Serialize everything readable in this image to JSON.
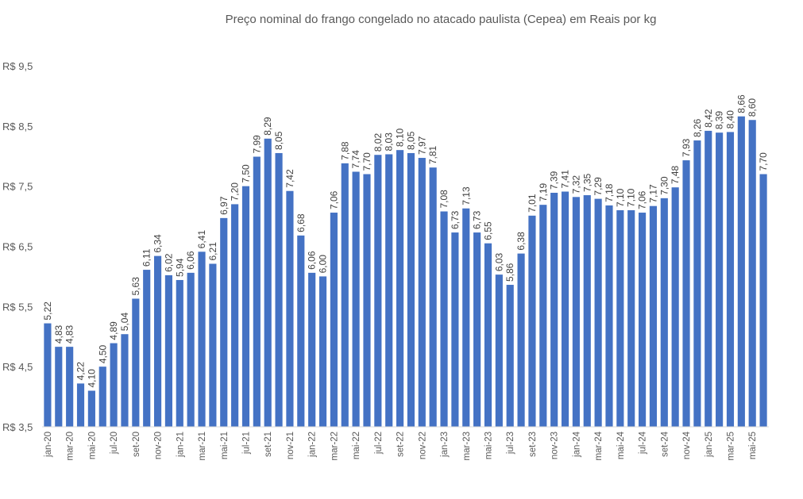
{
  "chart_data": {
    "type": "bar",
    "title": "Preço nominal do frango congelado no atacado paulista (Cepea) em Reais por kg",
    "xlabel": "",
    "ylabel": "",
    "ylim": [
      3.5,
      9.5
    ],
    "yticks": [
      3.5,
      4.5,
      5.5,
      6.5,
      7.5,
      8.5,
      9.5
    ],
    "ytick_labels": [
      "R$ 3,5",
      "R$ 4,5",
      "R$ 5,5",
      "R$ 6,5",
      "R$ 7,5",
      "R$ 8,5",
      "R$ 9,5"
    ],
    "grid": false,
    "bar_color": "#4472C4",
    "categories": [
      "jan-20",
      "fev-20",
      "mar-20",
      "abr-20",
      "mai-20",
      "jun-20",
      "jul-20",
      "ago-20",
      "set-20",
      "out-20",
      "nov-20",
      "dez-20",
      "jan-21",
      "fev-21",
      "mar-21",
      "abr-21",
      "mai-21",
      "jun-21",
      "jul-21",
      "ago-21",
      "set-21",
      "out-21",
      "nov-21",
      "dez-21",
      "jan-22",
      "fev-22",
      "mar-22",
      "abr-22",
      "mai-22",
      "jun-22",
      "jul-22",
      "ago-22",
      "set-22",
      "out-22",
      "nov-22",
      "dez-22",
      "jan-23",
      "fev-23",
      "mar-23",
      "abr-23",
      "mai-23",
      "jun-23",
      "jul-23",
      "ago-23",
      "set-23",
      "out-23",
      "nov-23",
      "dez-23",
      "jan-24",
      "fev-24",
      "mar-24",
      "abr-24",
      "mai-24",
      "jun-24",
      "jul-24",
      "ago-24",
      "set-24",
      "out-24",
      "nov-24",
      "dez-24",
      "jan-25",
      "fev-25",
      "mar-25",
      "abr-25",
      "mai-25",
      "jun-25"
    ],
    "values": [
      5.22,
      4.83,
      4.83,
      4.22,
      4.1,
      4.5,
      4.89,
      5.04,
      5.63,
      6.11,
      6.34,
      6.02,
      5.94,
      6.06,
      6.41,
      6.21,
      6.97,
      7.2,
      7.5,
      7.99,
      8.29,
      8.05,
      7.42,
      6.68,
      6.06,
      6.0,
      7.06,
      7.88,
      7.74,
      7.7,
      8.02,
      8.03,
      8.1,
      8.05,
      7.97,
      7.81,
      7.08,
      6.73,
      7.13,
      6.73,
      6.55,
      6.03,
      5.86,
      6.38,
      7.01,
      7.19,
      7.39,
      7.41,
      7.32,
      7.35,
      7.29,
      7.18,
      7.1,
      7.1,
      7.06,
      7.17,
      7.3,
      7.48,
      7.93,
      8.26,
      8.42,
      8.39,
      8.4,
      8.66,
      8.6,
      7.7
    ],
    "data_labels": [
      "5,22",
      "4,83",
      "4,83",
      "4,22",
      "4,10",
      "4,50",
      "4,89",
      "5,04",
      "5,63",
      "6,11",
      "6,34",
      "6,02",
      "5,94",
      "6,06",
      "6,41",
      "6,21",
      "6,97",
      "7,20",
      "7,50",
      "7,99",
      "8,29",
      "8,05",
      "7,42",
      "6,68",
      "6,06",
      "6,00",
      "7,06",
      "7,88",
      "7,74",
      "7,70",
      "8,02",
      "8,03",
      "8,10",
      "8,05",
      "7,97",
      "7,81",
      "7,08",
      "6,73",
      "7,13",
      "6,73",
      "6,55",
      "6,03",
      "5,86",
      "6,38",
      "7,01",
      "7,19",
      "7,39",
      "7,41",
      "7,32",
      "7,35",
      "7,29",
      "7,18",
      "7,10",
      "7,10",
      "7,06",
      "7,17",
      "7,30",
      "7,48",
      "7,93",
      "8,26",
      "8,42",
      "8,39",
      "8,40",
      "8,66",
      "8,60",
      "7,70"
    ],
    "x_label_every": 2
  }
}
